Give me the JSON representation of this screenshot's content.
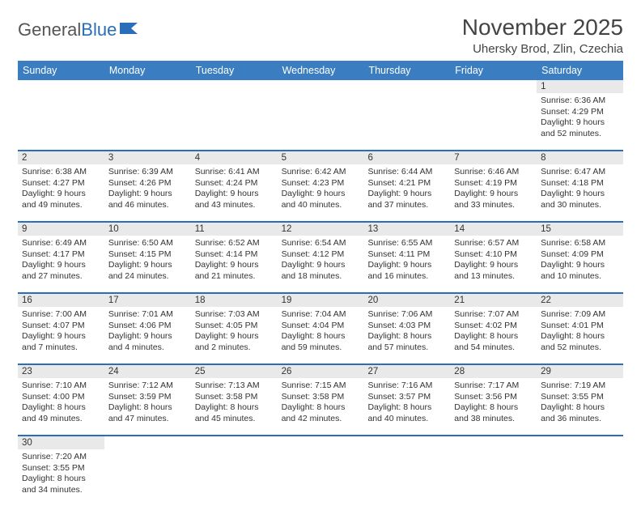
{
  "logo": {
    "textA": "General",
    "textB": "Blue"
  },
  "title": "November 2025",
  "location": "Uhersky Brod, Zlin, Czechia",
  "dayNames": [
    "Sunday",
    "Monday",
    "Tuesday",
    "Wednesday",
    "Thursday",
    "Friday",
    "Saturday"
  ],
  "header_bg": "#3a7ec1",
  "accent_color": "#2a6db8",
  "daynum_bg": "#e9e9e9",
  "weeks": [
    {
      "nums": [
        "",
        "",
        "",
        "",
        "",
        "",
        "1"
      ],
      "cells": [
        null,
        null,
        null,
        null,
        null,
        null,
        {
          "sr": "Sunrise: 6:36 AM",
          "ss": "Sunset: 4:29 PM",
          "dl": "Daylight: 9 hours and 52 minutes."
        }
      ]
    },
    {
      "nums": [
        "2",
        "3",
        "4",
        "5",
        "6",
        "7",
        "8"
      ],
      "cells": [
        {
          "sr": "Sunrise: 6:38 AM",
          "ss": "Sunset: 4:27 PM",
          "dl": "Daylight: 9 hours and 49 minutes."
        },
        {
          "sr": "Sunrise: 6:39 AM",
          "ss": "Sunset: 4:26 PM",
          "dl": "Daylight: 9 hours and 46 minutes."
        },
        {
          "sr": "Sunrise: 6:41 AM",
          "ss": "Sunset: 4:24 PM",
          "dl": "Daylight: 9 hours and 43 minutes."
        },
        {
          "sr": "Sunrise: 6:42 AM",
          "ss": "Sunset: 4:23 PM",
          "dl": "Daylight: 9 hours and 40 minutes."
        },
        {
          "sr": "Sunrise: 6:44 AM",
          "ss": "Sunset: 4:21 PM",
          "dl": "Daylight: 9 hours and 37 minutes."
        },
        {
          "sr": "Sunrise: 6:46 AM",
          "ss": "Sunset: 4:19 PM",
          "dl": "Daylight: 9 hours and 33 minutes."
        },
        {
          "sr": "Sunrise: 6:47 AM",
          "ss": "Sunset: 4:18 PM",
          "dl": "Daylight: 9 hours and 30 minutes."
        }
      ]
    },
    {
      "nums": [
        "9",
        "10",
        "11",
        "12",
        "13",
        "14",
        "15"
      ],
      "cells": [
        {
          "sr": "Sunrise: 6:49 AM",
          "ss": "Sunset: 4:17 PM",
          "dl": "Daylight: 9 hours and 27 minutes."
        },
        {
          "sr": "Sunrise: 6:50 AM",
          "ss": "Sunset: 4:15 PM",
          "dl": "Daylight: 9 hours and 24 minutes."
        },
        {
          "sr": "Sunrise: 6:52 AM",
          "ss": "Sunset: 4:14 PM",
          "dl": "Daylight: 9 hours and 21 minutes."
        },
        {
          "sr": "Sunrise: 6:54 AM",
          "ss": "Sunset: 4:12 PM",
          "dl": "Daylight: 9 hours and 18 minutes."
        },
        {
          "sr": "Sunrise: 6:55 AM",
          "ss": "Sunset: 4:11 PM",
          "dl": "Daylight: 9 hours and 16 minutes."
        },
        {
          "sr": "Sunrise: 6:57 AM",
          "ss": "Sunset: 4:10 PM",
          "dl": "Daylight: 9 hours and 13 minutes."
        },
        {
          "sr": "Sunrise: 6:58 AM",
          "ss": "Sunset: 4:09 PM",
          "dl": "Daylight: 9 hours and 10 minutes."
        }
      ]
    },
    {
      "nums": [
        "16",
        "17",
        "18",
        "19",
        "20",
        "21",
        "22"
      ],
      "cells": [
        {
          "sr": "Sunrise: 7:00 AM",
          "ss": "Sunset: 4:07 PM",
          "dl": "Daylight: 9 hours and 7 minutes."
        },
        {
          "sr": "Sunrise: 7:01 AM",
          "ss": "Sunset: 4:06 PM",
          "dl": "Daylight: 9 hours and 4 minutes."
        },
        {
          "sr": "Sunrise: 7:03 AM",
          "ss": "Sunset: 4:05 PM",
          "dl": "Daylight: 9 hours and 2 minutes."
        },
        {
          "sr": "Sunrise: 7:04 AM",
          "ss": "Sunset: 4:04 PM",
          "dl": "Daylight: 8 hours and 59 minutes."
        },
        {
          "sr": "Sunrise: 7:06 AM",
          "ss": "Sunset: 4:03 PM",
          "dl": "Daylight: 8 hours and 57 minutes."
        },
        {
          "sr": "Sunrise: 7:07 AM",
          "ss": "Sunset: 4:02 PM",
          "dl": "Daylight: 8 hours and 54 minutes."
        },
        {
          "sr": "Sunrise: 7:09 AM",
          "ss": "Sunset: 4:01 PM",
          "dl": "Daylight: 8 hours and 52 minutes."
        }
      ]
    },
    {
      "nums": [
        "23",
        "24",
        "25",
        "26",
        "27",
        "28",
        "29"
      ],
      "cells": [
        {
          "sr": "Sunrise: 7:10 AM",
          "ss": "Sunset: 4:00 PM",
          "dl": "Daylight: 8 hours and 49 minutes."
        },
        {
          "sr": "Sunrise: 7:12 AM",
          "ss": "Sunset: 3:59 PM",
          "dl": "Daylight: 8 hours and 47 minutes."
        },
        {
          "sr": "Sunrise: 7:13 AM",
          "ss": "Sunset: 3:58 PM",
          "dl": "Daylight: 8 hours and 45 minutes."
        },
        {
          "sr": "Sunrise: 7:15 AM",
          "ss": "Sunset: 3:58 PM",
          "dl": "Daylight: 8 hours and 42 minutes."
        },
        {
          "sr": "Sunrise: 7:16 AM",
          "ss": "Sunset: 3:57 PM",
          "dl": "Daylight: 8 hours and 40 minutes."
        },
        {
          "sr": "Sunrise: 7:17 AM",
          "ss": "Sunset: 3:56 PM",
          "dl": "Daylight: 8 hours and 38 minutes."
        },
        {
          "sr": "Sunrise: 7:19 AM",
          "ss": "Sunset: 3:55 PM",
          "dl": "Daylight: 8 hours and 36 minutes."
        }
      ]
    },
    {
      "nums": [
        "30",
        "",
        "",
        "",
        "",
        "",
        ""
      ],
      "cells": [
        {
          "sr": "Sunrise: 7:20 AM",
          "ss": "Sunset: 3:55 PM",
          "dl": "Daylight: 8 hours and 34 minutes."
        },
        null,
        null,
        null,
        null,
        null,
        null
      ]
    }
  ]
}
